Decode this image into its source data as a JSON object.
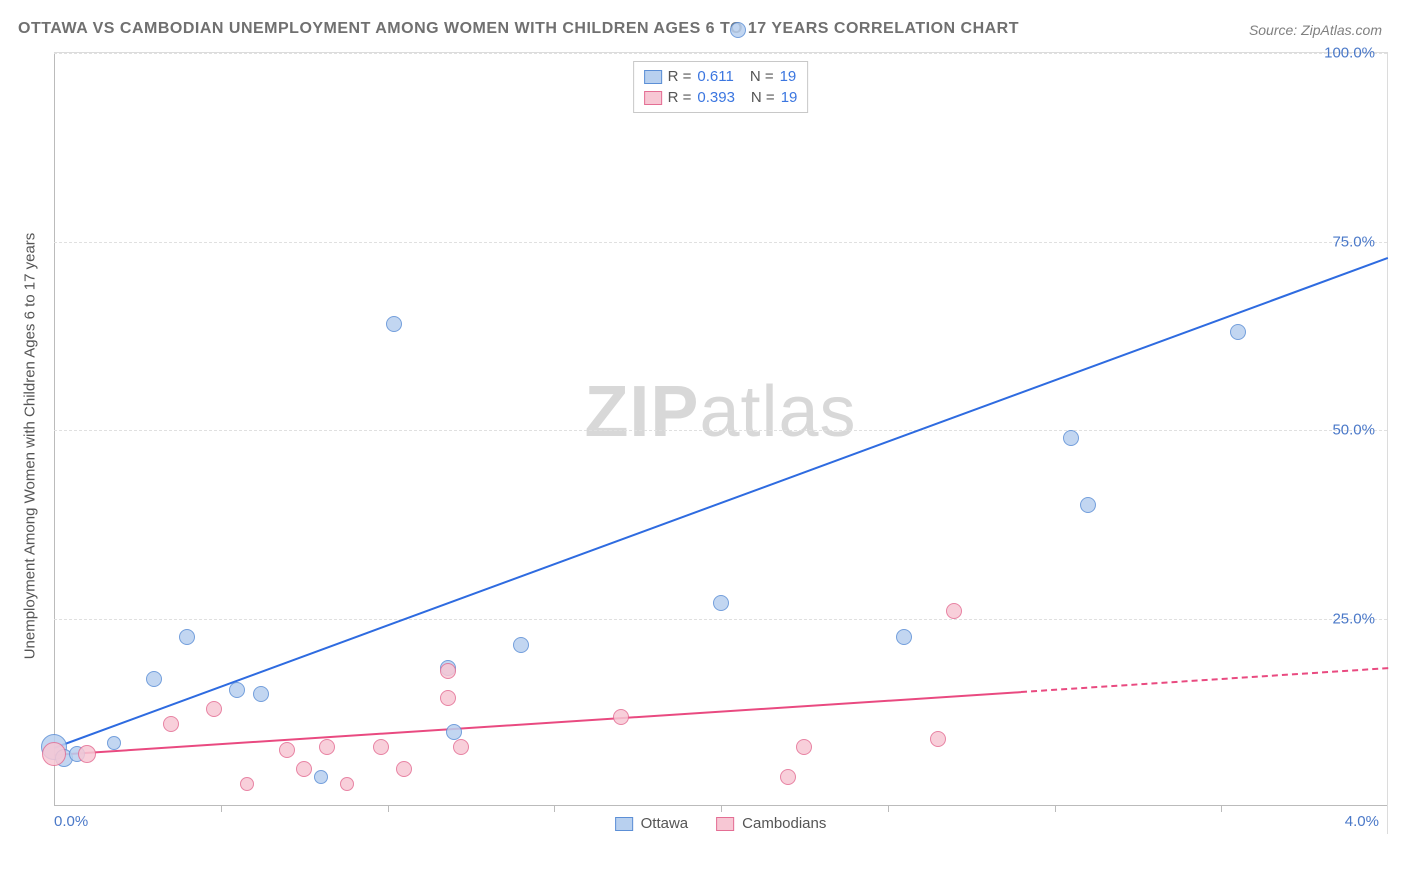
{
  "title": "OTTAWA VS CAMBODIAN UNEMPLOYMENT AMONG WOMEN WITH CHILDREN AGES 6 TO 17 YEARS CORRELATION CHART",
  "source": "Source: ZipAtlas.com",
  "yaxis_label": "Unemployment Among Women with Children Ages 6 to 17 years",
  "watermark_a": "ZIP",
  "watermark_b": "atlas",
  "chart": {
    "type": "scatter-with-trend",
    "xlim": [
      0.0,
      4.0
    ],
    "ylim": [
      0.0,
      100.0
    ],
    "ytick_step": 25.0,
    "xtick_positions": [
      0.5,
      1.0,
      1.5,
      2.0,
      2.5,
      3.0,
      3.5
    ],
    "xlabels": [
      {
        "v": 0.0,
        "t": "0.0%",
        "align": "left"
      },
      {
        "v": 4.0,
        "t": "4.0%",
        "align": "right"
      }
    ],
    "ylabels": [
      {
        "v": 25.0,
        "t": "25.0%"
      },
      {
        "v": 50.0,
        "t": "50.0%"
      },
      {
        "v": 75.0,
        "t": "75.0%"
      },
      {
        "v": 100.0,
        "t": "100.0%"
      }
    ],
    "background": "#ffffff",
    "grid_color": "#e0e0e0",
    "series": [
      {
        "name": "Ottawa",
        "color_fill": "#b8d0ef",
        "color_stroke": "#5c8fd6",
        "trend_color": "#2e6be0",
        "R": "0.611",
        "N": "19",
        "marker_r": 8,
        "trend": {
          "x0": 0.0,
          "y0": 8.0,
          "x1": 4.0,
          "y1": 73.0,
          "x_solid_end": 4.0
        },
        "points": [
          {
            "x": 0.0,
            "y": 8.0,
            "r": 13
          },
          {
            "x": 0.03,
            "y": 6.5,
            "r": 9
          },
          {
            "x": 0.07,
            "y": 7.0,
            "r": 8
          },
          {
            "x": 0.18,
            "y": 8.5,
            "r": 7
          },
          {
            "x": 0.3,
            "y": 17.0,
            "r": 8
          },
          {
            "x": 0.4,
            "y": 22.5,
            "r": 8
          },
          {
            "x": 0.55,
            "y": 15.5,
            "r": 8
          },
          {
            "x": 0.62,
            "y": 15.0,
            "r": 8
          },
          {
            "x": 0.8,
            "y": 4.0,
            "r": 7
          },
          {
            "x": 1.02,
            "y": 64.0,
            "r": 8
          },
          {
            "x": 1.18,
            "y": 18.5,
            "r": 8
          },
          {
            "x": 1.2,
            "y": 10.0,
            "r": 8
          },
          {
            "x": 1.4,
            "y": 21.5,
            "r": 8
          },
          {
            "x": 2.0,
            "y": 27.0,
            "r": 8
          },
          {
            "x": 2.55,
            "y": 22.5,
            "r": 8
          },
          {
            "x": 3.1,
            "y": 40.0,
            "r": 8
          },
          {
            "x": 3.05,
            "y": 49.0,
            "r": 8
          },
          {
            "x": 3.55,
            "y": 63.0,
            "r": 8
          },
          {
            "x": 2.05,
            "y": 103.0,
            "r": 8
          }
        ]
      },
      {
        "name": "Cambodians",
        "color_fill": "#f7c7d4",
        "color_stroke": "#e46e94",
        "trend_color": "#e94a80",
        "R": "0.393",
        "N": "19",
        "marker_r": 8,
        "trend": {
          "x0": 0.0,
          "y0": 7.0,
          "x1": 4.0,
          "y1": 18.5,
          "x_solid_end": 2.9
        },
        "points": [
          {
            "x": 0.0,
            "y": 7.0,
            "r": 12
          },
          {
            "x": 0.1,
            "y": 7.0,
            "r": 9
          },
          {
            "x": 0.35,
            "y": 11.0,
            "r": 8
          },
          {
            "x": 0.48,
            "y": 13.0,
            "r": 8
          },
          {
            "x": 0.58,
            "y": 3.0,
            "r": 7
          },
          {
            "x": 0.7,
            "y": 7.5,
            "r": 8
          },
          {
            "x": 0.75,
            "y": 5.0,
            "r": 8
          },
          {
            "x": 0.82,
            "y": 8.0,
            "r": 8
          },
          {
            "x": 0.88,
            "y": 3.0,
            "r": 7
          },
          {
            "x": 0.98,
            "y": 8.0,
            "r": 8
          },
          {
            "x": 1.05,
            "y": 5.0,
            "r": 8
          },
          {
            "x": 1.18,
            "y": 14.5,
            "r": 8
          },
          {
            "x": 1.18,
            "y": 18.0,
            "r": 8
          },
          {
            "x": 1.22,
            "y": 8.0,
            "r": 8
          },
          {
            "x": 1.7,
            "y": 12.0,
            "r": 8
          },
          {
            "x": 2.2,
            "y": 4.0,
            "r": 8
          },
          {
            "x": 2.25,
            "y": 8.0,
            "r": 8
          },
          {
            "x": 2.65,
            "y": 9.0,
            "r": 8
          },
          {
            "x": 2.7,
            "y": 26.0,
            "r": 8
          }
        ]
      }
    ]
  },
  "legend_bottom": [
    {
      "label": "Ottawa",
      "fill": "#b8d0ef",
      "stroke": "#5c8fd6"
    },
    {
      "label": "Cambodians",
      "fill": "#f7c7d4",
      "stroke": "#e46e94"
    }
  ]
}
